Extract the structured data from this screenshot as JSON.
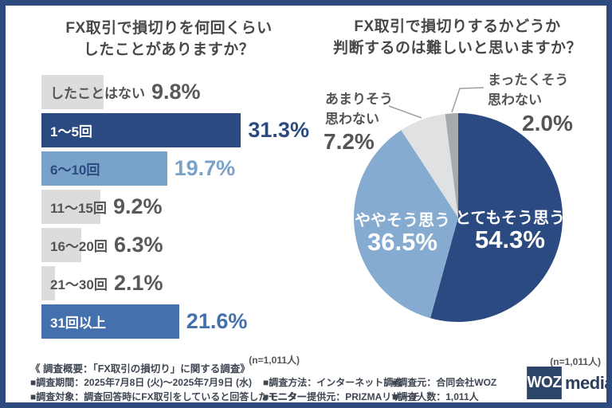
{
  "palette": {
    "frame": "#2c4a80",
    "navy": "#2b4a81",
    "mediumblue": "#4471ad",
    "lightblue_bar": "#79a2c9",
    "lightblue_pie": "#85abd0",
    "gray_bar": "#dcdcdc",
    "lightgray_pie": "#dfe1e2",
    "midgray_pie": "#a6aaae",
    "title_text": "#484848",
    "outer_label_text": "#555555",
    "leader_line": "#9aa0a6"
  },
  "bar_style_defs": {
    "gray": {
      "bar": "#dcdcdc",
      "label": "#545454",
      "pct": "#58595b",
      "pct_outside": false
    },
    "navy": {
      "bar": "#2b4a81",
      "label": "#ffffff",
      "pct": "#2b4a81",
      "pct_outside": true
    },
    "lightblue": {
      "bar": "#79a2c9",
      "label": "#2b4a81",
      "pct": "#79a2c9",
      "pct_outside": true
    },
    "mediumblue": {
      "bar": "#4471ad",
      "label": "#ffffff",
      "pct": "#4471ad",
      "pct_outside": true
    }
  },
  "chart_data": [
    {
      "type": "bar",
      "orientation": "horizontal",
      "title": "FX取引で損切りを何回くらいしたことがありますか？",
      "title_lines": [
        "FX取引で損切りを何回くらい",
        "したことがありますか？"
      ],
      "categories": [
        "したことはない",
        "1〜5回",
        "6〜10回",
        "11〜15回",
        "16〜20回",
        "21〜30回",
        "31回以上"
      ],
      "values": [
        9.8,
        31.3,
        19.7,
        9.2,
        6.3,
        2.1,
        21.6
      ],
      "value_labels": [
        "9.8%",
        "31.3%",
        "19.7%",
        "9.2%",
        "6.3%",
        "2.1%",
        "21.6%"
      ],
      "bar_styles": [
        "gray",
        "navy",
        "lightblue",
        "gray",
        "gray",
        "gray",
        "mediumblue"
      ],
      "unit": "%",
      "xlim": [
        0,
        35
      ],
      "n_label": "(n=1,011人)"
    },
    {
      "type": "pie",
      "title": "FX取引で損切りするかどうか判断するのは難しいと思いますか？",
      "title_lines": [
        "FX取引で損切りするかどうか",
        "判断するのは難しいと思いますか？"
      ],
      "start_angle": "12時方向",
      "direction": "clockwise",
      "slices": [
        {
          "key": "strongly-agree",
          "label": "とてもそう思う",
          "value": 54.3,
          "display": "54.3%",
          "color_key": "navy",
          "label_placement": "inside"
        },
        {
          "key": "somewhat-agree",
          "label": "ややそう思う",
          "value": 36.5,
          "display": "36.5%",
          "color_key": "lightblue_pie",
          "label_placement": "inside"
        },
        {
          "key": "somewhat-disagree",
          "label": "あまりそう思わない",
          "value": 7.2,
          "display": "7.2%",
          "color_key": "lightgray_pie",
          "label_placement": "outside",
          "label_lines": [
            "あまりそう",
            "思わない"
          ]
        },
        {
          "key": "strongly-disagree",
          "label": "まったくそう思わない",
          "value": 2.0,
          "display": "2.0%",
          "color_key": "midgray_pie",
          "label_placement": "outside",
          "label_lines": [
            "まったくそう",
            "思わない"
          ]
        }
      ],
      "n_label": "(n=1,011人)"
    }
  ],
  "footer": {
    "heading": "《 調査概要：「FX取引の損切り」に関する調査》",
    "items_row1": [
      "■調査期間：2025年7月8日 (火)〜2025年7月9日 (水)",
      "■調査方法：インターネット調査",
      "■調査元：合同会社WOZ"
    ],
    "items_row2": [
      "■調査対象：調査回答時にFX取引をしていると回答したモニター",
      "■モニター提供元：PRIZMAリサーチ",
      "■調査人数：1,011人"
    ]
  },
  "logo": {
    "mark": "WOZ",
    "text": "media"
  }
}
